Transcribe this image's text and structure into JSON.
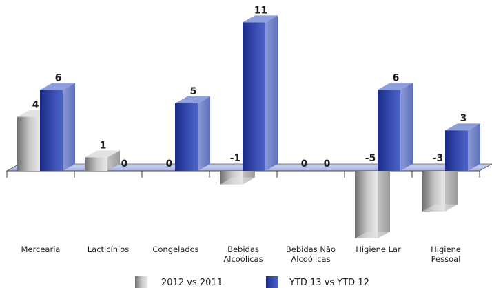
{
  "chart_data": {
    "type": "bar",
    "title": "",
    "xlabel": "",
    "ylabel": "",
    "ylim": [
      -6,
      11
    ],
    "grid": false,
    "legend_position": "bottom",
    "categories": [
      [
        "Mercearia"
      ],
      [
        "Lacticínios"
      ],
      [
        "Congelados"
      ],
      [
        "Bebidas",
        "Alcoólicas"
      ],
      [
        "Bebidas Não",
        "Alcoólicas"
      ],
      [
        "Higiene Lar"
      ],
      [
        "Higiene",
        "Pessoal"
      ]
    ],
    "series": [
      {
        "name": "2012 vs 2011",
        "values": [
          4,
          1,
          0,
          -1,
          0,
          -5,
          -3
        ]
      },
      {
        "name": "YTD 13 vs YTD 12",
        "values": [
          6,
          0,
          5,
          11,
          0,
          6,
          3
        ]
      }
    ]
  },
  "colors": {
    "series_gray": "#a6a6a6",
    "series_blue": "#2e3f9a",
    "floor": "#b4c0e8",
    "axis": "#444444"
  }
}
